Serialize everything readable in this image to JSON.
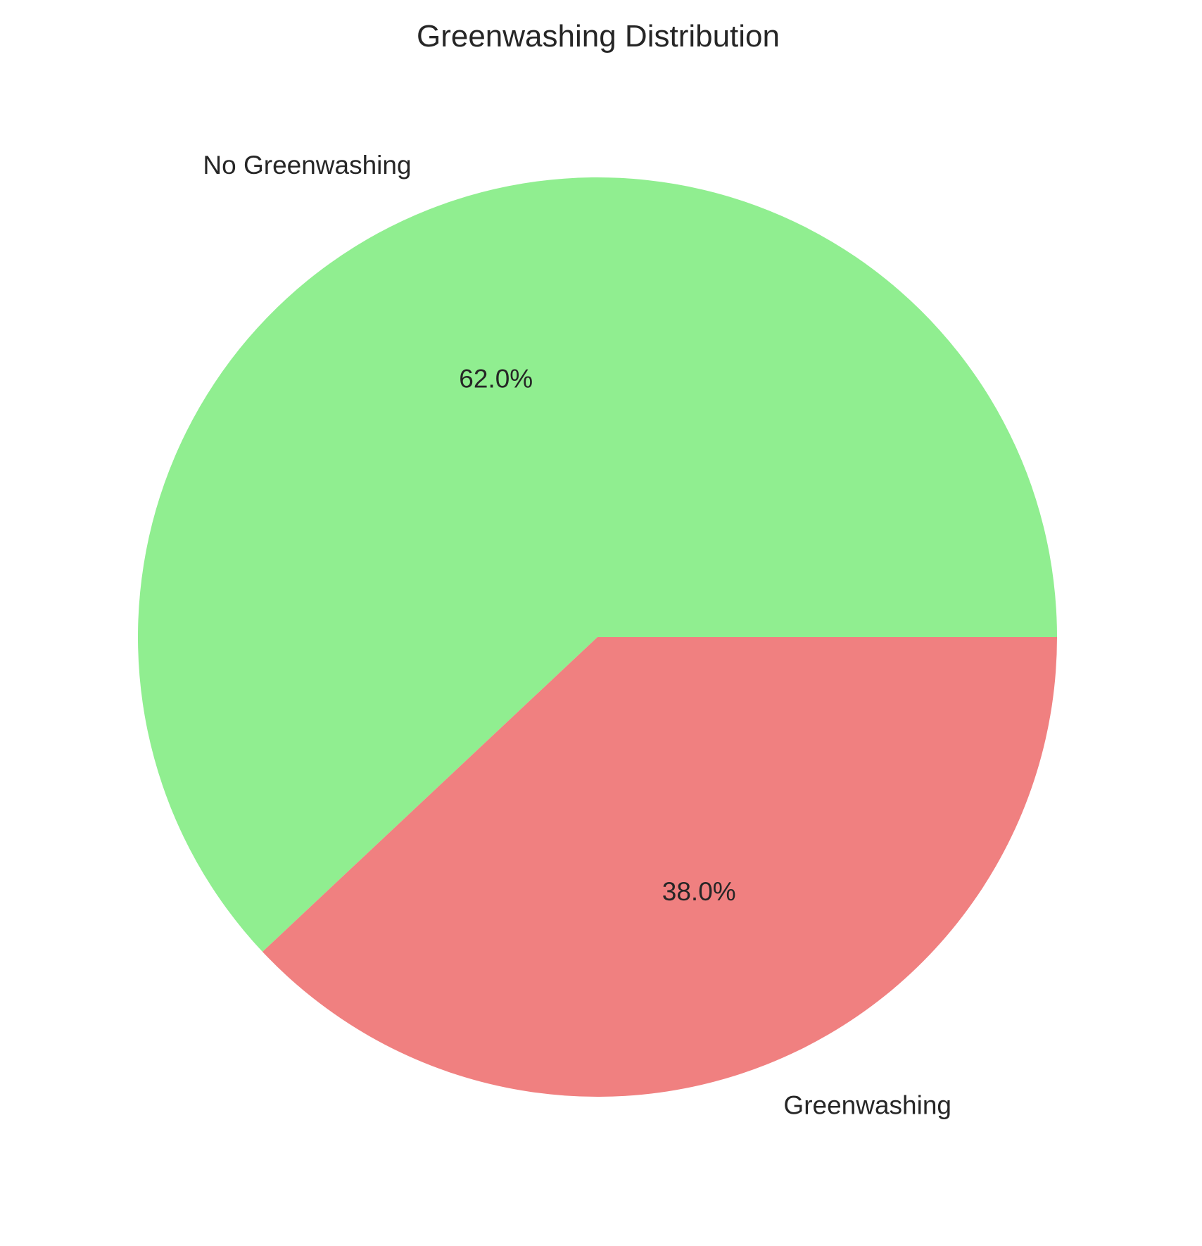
{
  "chart_data": {
    "type": "pie",
    "title": "Greenwashing Distribution",
    "categories": [
      "No Greenwashing",
      "Greenwashing"
    ],
    "values": [
      62.0,
      38.0
    ],
    "value_labels": [
      "62.0%",
      "38.0%"
    ],
    "colors": [
      "#90EE90",
      "#F08080"
    ],
    "start_angle": "0 degrees (3 o'clock), counter-clockwise",
    "legend": "none"
  }
}
